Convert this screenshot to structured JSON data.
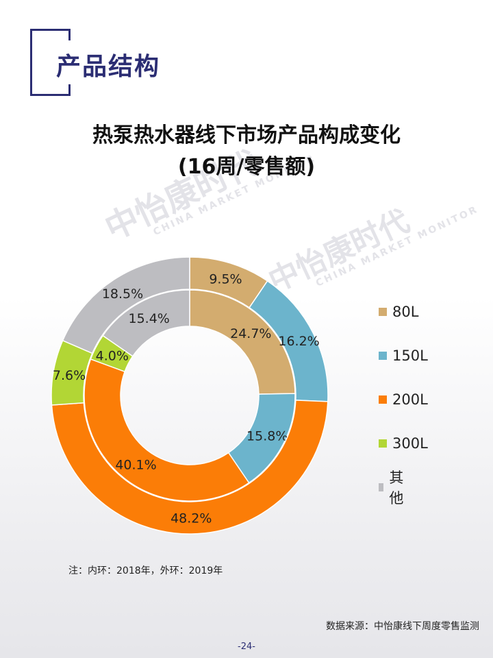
{
  "header": {
    "section_title": "产品结构"
  },
  "watermark": {
    "text": "中怡康时代",
    "sub": "CHINA MARKET MONITOR"
  },
  "chart_data": {
    "type": "donut",
    "title": "热泵热水器线下市场产品构成变化",
    "subtitle": "(16周/零售额)",
    "categories": [
      "80L",
      "150L",
      "200L",
      "300L",
      "其他"
    ],
    "colors": [
      "#d3ac6f",
      "#6cb4cc",
      "#fb7d07",
      "#b2d635",
      "#bdbdc1"
    ],
    "series": [
      {
        "ring": "inner",
        "year": "2018",
        "values": [
          24.7,
          15.8,
          40.1,
          4.0,
          15.4
        ],
        "labels": [
          "24.7%",
          "15.8%",
          "40.1%",
          "4.0%",
          "15.4%"
        ]
      },
      {
        "ring": "outer",
        "year": "2019",
        "values": [
          9.5,
          16.2,
          48.2,
          7.6,
          18.5
        ],
        "labels": [
          "9.5%",
          "16.2%",
          "48.2%",
          "7.6%",
          "18.5%"
        ]
      }
    ],
    "legend": [
      "80L",
      "150L",
      "200L",
      "300L",
      "其他"
    ],
    "legend_position": "right"
  },
  "footer": {
    "note": "注：内环：2018年，外环：2019年",
    "source": "数据来源：中怡康线下周度零售监测",
    "page": "-24-"
  }
}
